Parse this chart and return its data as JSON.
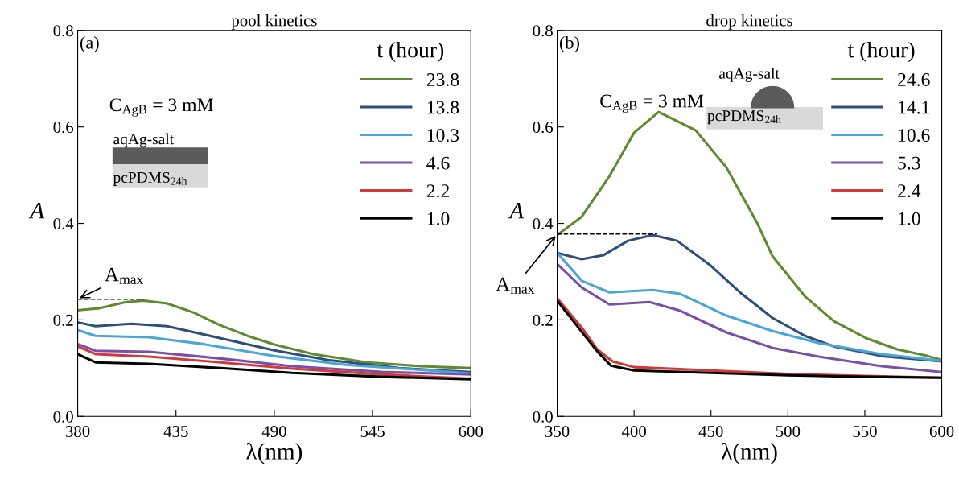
{
  "chart_data": [
    {
      "type": "line",
      "title": "pool kinetics",
      "xlabel": "λ(nm)",
      "ylabel": "A",
      "legend_title": "t (hour)",
      "legend": "top right",
      "grid": false,
      "line_style": "solid",
      "marker": "none",
      "xlim": [
        380,
        600
      ],
      "xticks": [
        380,
        435,
        490,
        545,
        600
      ],
      "ylim": [
        0,
        0.8
      ],
      "yticks": [
        {
          "value": 0,
          "label": "0.0"
        },
        {
          "value": 0.2,
          "label": "0.2"
        },
        {
          "value": 0.4,
          "label": "0.4"
        },
        {
          "value": 0.6,
          "label": "0.6"
        },
        {
          "value": 0.8,
          "label": "0.8"
        }
      ],
      "annotations": [
        "(a)",
        "C$_{AgB}$ = 3 mM",
        "aqAg-salt",
        "pcPDMS$_{24h}$",
        {
          "text": "A$_{max}$",
          "x": 380,
          "y": 0.243
        }
      ],
      "series": [
        {
          "name": "23.8",
          "color": "#5f8a2f",
          "x": [
            380,
            392,
            407,
            417,
            430,
            445,
            459,
            475,
            490,
            512,
            542,
            572,
            600
          ],
          "values": [
            0.22,
            0.224,
            0.237,
            0.24,
            0.234,
            0.215,
            0.19,
            0.167,
            0.149,
            0.129,
            0.112,
            0.104,
            0.1
          ]
        },
        {
          "name": "13.8",
          "color": "#2f4f7a",
          "x": [
            380,
            390,
            410,
            430,
            460,
            490,
            520,
            560,
            600
          ],
          "values": [
            0.195,
            0.187,
            0.192,
            0.187,
            0.162,
            0.137,
            0.117,
            0.1,
            0.092
          ]
        },
        {
          "name": "10.3",
          "color": "#4aa6d6",
          "x": [
            380,
            390,
            420,
            450,
            490,
            530,
            600
          ],
          "values": [
            0.179,
            0.167,
            0.164,
            0.15,
            0.125,
            0.107,
            0.089
          ]
        },
        {
          "name": "4.6",
          "color": "#7b4fa8",
          "x": [
            380,
            390,
            420,
            460,
            500,
            550,
            600
          ],
          "values": [
            0.15,
            0.136,
            0.134,
            0.12,
            0.104,
            0.092,
            0.087
          ]
        },
        {
          "name": "2.2",
          "color": "#d03a3a",
          "x": [
            380,
            390,
            420,
            460,
            500,
            550,
            600
          ],
          "values": [
            0.145,
            0.129,
            0.124,
            0.112,
            0.099,
            0.087,
            0.078
          ]
        },
        {
          "name": "1.0",
          "color": "#000000",
          "x": [
            380,
            390,
            420,
            460,
            500,
            550,
            600
          ],
          "values": [
            0.129,
            0.112,
            0.109,
            0.1,
            0.09,
            0.082,
            0.077
          ]
        },
        {
          "color": "#000000",
          "line_style": "dashed",
          "x": [
            380,
            417
          ],
          "values": [
            0.243,
            0.243
          ]
        }
      ]
    },
    {
      "type": "line",
      "title": "drop kinetics",
      "xlabel": "λ(nm)",
      "ylabel": "A",
      "legend_title": "t (hour)",
      "legend": "top right",
      "grid": false,
      "line_style": "solid",
      "marker": "none",
      "xlim": [
        350,
        600
      ],
      "xticks": [
        350,
        400,
        450,
        500,
        550,
        600
      ],
      "ylim": [
        0,
        0.8
      ],
      "yticks": [
        {
          "value": 0,
          "label": "0.0"
        },
        {
          "value": 0.2,
          "label": "0.2"
        },
        {
          "value": 0.4,
          "label": "0.4"
        },
        {
          "value": 0.6,
          "label": "0.6"
        },
        {
          "value": 0.8,
          "label": "0.8"
        }
      ],
      "annotations": [
        "(b)",
        "C$_{AgB}$ = 3 mM",
        "aqAg-salt",
        "pcPDMS$_{24h}$",
        {
          "text": "A$_{max}$",
          "x": 350,
          "y": 0.378
        }
      ],
      "series": [
        {
          "name": "24.6",
          "color": "#5f8a2f",
          "x": [
            350,
            366,
            384,
            400,
            416,
            440,
            460,
            480,
            490,
            511,
            530,
            551,
            571,
            591,
            600
          ],
          "values": [
            0.376,
            0.414,
            0.498,
            0.588,
            0.631,
            0.593,
            0.516,
            0.401,
            0.332,
            0.249,
            0.197,
            0.162,
            0.139,
            0.125,
            0.117
          ]
        },
        {
          "name": "14.1",
          "color": "#2f4f7a",
          "x": [
            350,
            366,
            380,
            396,
            412,
            428,
            450,
            470,
            490,
            511,
            530,
            561,
            600
          ],
          "values": [
            0.339,
            0.326,
            0.334,
            0.364,
            0.376,
            0.364,
            0.312,
            0.254,
            0.204,
            0.167,
            0.145,
            0.125,
            0.114
          ]
        },
        {
          "name": "10.6",
          "color": "#4aa6d6",
          "x": [
            350,
            366,
            384,
            412,
            430,
            460,
            490,
            520,
            561,
            600
          ],
          "values": [
            0.339,
            0.281,
            0.257,
            0.262,
            0.254,
            0.209,
            0.177,
            0.152,
            0.129,
            0.115
          ]
        },
        {
          "name": "5.3",
          "color": "#7b4fa8",
          "x": [
            350,
            366,
            384,
            410,
            430,
            460,
            490,
            520,
            561,
            600
          ],
          "values": [
            0.316,
            0.267,
            0.232,
            0.237,
            0.219,
            0.174,
            0.142,
            0.124,
            0.104,
            0.092
          ]
        },
        {
          "name": "2.4",
          "color": "#d03a3a",
          "x": [
            350,
            366,
            376,
            386,
            400,
            450,
            500,
            550,
            600
          ],
          "values": [
            0.245,
            0.184,
            0.139,
            0.114,
            0.102,
            0.095,
            0.088,
            0.084,
            0.08
          ]
        },
        {
          "name": "1.0",
          "color": "#000000",
          "x": [
            350,
            366,
            376,
            385,
            400,
            450,
            500,
            550,
            600
          ],
          "values": [
            0.24,
            0.175,
            0.135,
            0.105,
            0.095,
            0.09,
            0.085,
            0.082,
            0.08
          ]
        },
        {
          "color": "#000000",
          "line_style": "dashed",
          "x": [
            350,
            415
          ],
          "values": [
            0.378,
            0.378
          ]
        }
      ]
    }
  ]
}
